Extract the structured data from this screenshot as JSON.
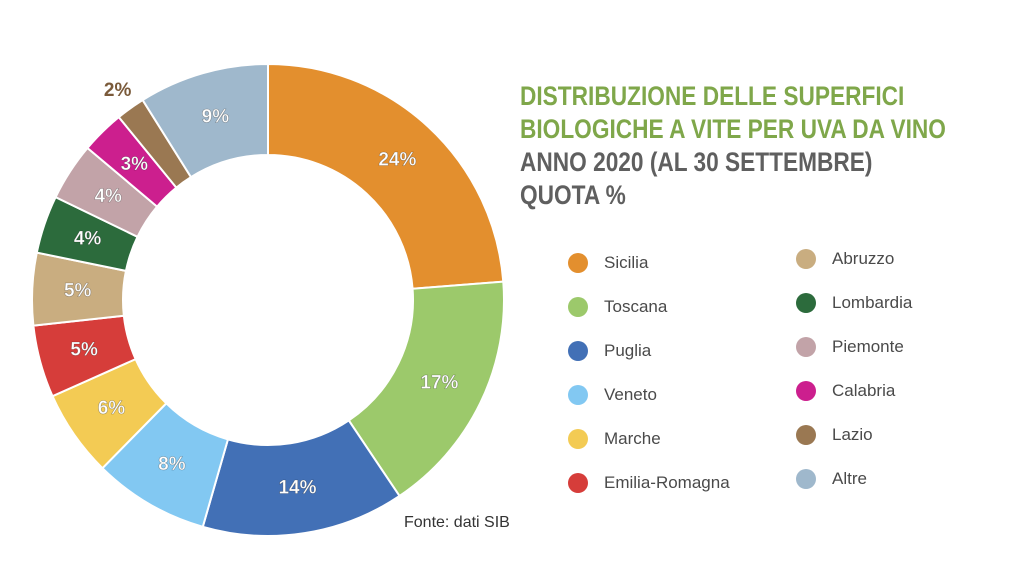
{
  "chart_data": {
    "type": "pie",
    "donut": true,
    "title": [
      "DISTRIBUZIONE DELLE SUPERFICI",
      "BIOLOGICHE A VITE PER UVA DA VINO",
      "ANNO 2020 (AL 30 SETTEMBRE)",
      "QUOTA %"
    ],
    "slices": [
      {
        "label": "Sicilia",
        "value": 24,
        "display": "24%",
        "color": "#e38f2e"
      },
      {
        "label": "Toscana",
        "value": 17,
        "display": "17%",
        "color": "#9cc96b"
      },
      {
        "label": "Puglia",
        "value": 14,
        "display": "14%",
        "color": "#4270b6"
      },
      {
        "label": "Veneto",
        "value": 8,
        "display": "8%",
        "color": "#82c8f2"
      },
      {
        "label": "Marche",
        "value": 6,
        "display": "6%",
        "color": "#f3cb54"
      },
      {
        "label": "Emilia-Romagna",
        "value": 5,
        "display": "5%",
        "color": "#d63d3a"
      },
      {
        "label": "Abruzzo",
        "value": 5,
        "display": "5%",
        "color": "#c9ad80"
      },
      {
        "label": "Lombardia",
        "value": 4,
        "display": "4%",
        "color": "#2c6b3c"
      },
      {
        "label": "Piemonte",
        "value": 4,
        "display": "4%",
        "color": "#c2a3a8"
      },
      {
        "label": "Calabria",
        "value": 3,
        "display": "3%",
        "color": "#cc1f8e"
      },
      {
        "label": "Lazio",
        "value": 2,
        "display": "2%",
        "color": "#9a7852"
      },
      {
        "label": "Altre",
        "value": 9,
        "display": "9%",
        "color": "#9fb8cc"
      }
    ],
    "legend_position": "right",
    "source": "Fonte: dati SIB"
  }
}
